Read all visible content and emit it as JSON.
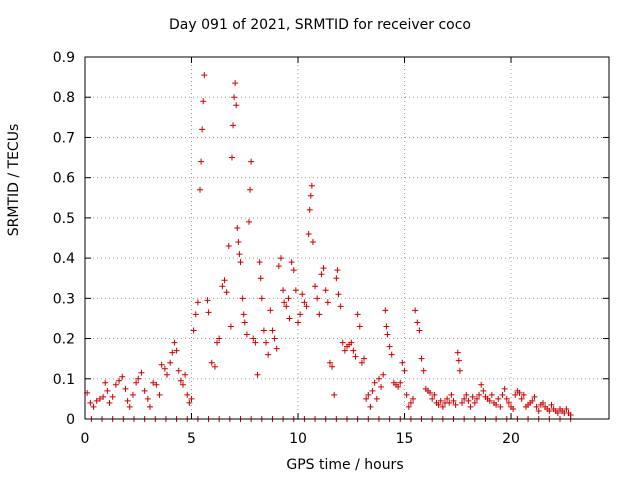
{
  "chart_data": {
    "type": "scatter",
    "title": "Day 091 of 2021, SRMTID for receiver coco",
    "xlabel": "GPS time / hours",
    "ylabel": "SRMTID / TECUs",
    "xlim": [
      0,
      24.6
    ],
    "ylim": [
      0,
      0.9
    ],
    "xticks": [
      0,
      5,
      10,
      15,
      20
    ],
    "yticks": [
      0,
      0.1,
      0.2,
      0.3,
      0.4,
      0.5,
      0.6,
      0.7,
      0.8,
      0.9
    ],
    "grid": true,
    "marker": "+",
    "color": "#cc0000",
    "series": [
      {
        "name": "SRMTID",
        "points": [
          [
            0.1,
            0.065
          ],
          [
            0.25,
            0.04
          ],
          [
            0.4,
            0.03
          ],
          [
            0.55,
            0.045
          ],
          [
            0.7,
            0.05
          ],
          [
            0.85,
            0.055
          ],
          [
            0.95,
            0.09
          ],
          [
            1.05,
            0.07
          ],
          [
            1.15,
            0.04
          ],
          [
            1.3,
            0.055
          ],
          [
            1.45,
            0.085
          ],
          [
            1.6,
            0.095
          ],
          [
            1.75,
            0.105
          ],
          [
            1.9,
            0.075
          ],
          [
            2.0,
            0.045
          ],
          [
            2.1,
            0.03
          ],
          [
            2.25,
            0.06
          ],
          [
            2.4,
            0.09
          ],
          [
            2.5,
            0.1
          ],
          [
            2.65,
            0.115
          ],
          [
            2.8,
            0.07
          ],
          [
            2.95,
            0.05
          ],
          [
            3.05,
            0.03
          ],
          [
            3.2,
            0.09
          ],
          [
            3.35,
            0.085
          ],
          [
            3.5,
            0.06
          ],
          [
            3.6,
            0.135
          ],
          [
            3.75,
            0.125
          ],
          [
            3.85,
            0.11
          ],
          [
            4.0,
            0.14
          ],
          [
            4.1,
            0.165
          ],
          [
            4.2,
            0.19
          ],
          [
            4.3,
            0.17
          ],
          [
            4.4,
            0.12
          ],
          [
            4.5,
            0.095
          ],
          [
            4.6,
            0.085
          ],
          [
            4.7,
            0.11
          ],
          [
            4.8,
            0.06
          ],
          [
            4.9,
            0.04
          ],
          [
            5.0,
            0.05
          ],
          [
            5.1,
            0.22
          ],
          [
            5.2,
            0.26
          ],
          [
            5.3,
            0.29
          ],
          [
            5.4,
            0.57
          ],
          [
            5.45,
            0.64
          ],
          [
            5.5,
            0.72
          ],
          [
            5.55,
            0.79
          ],
          [
            5.6,
            0.855
          ],
          [
            5.75,
            0.295
          ],
          [
            5.8,
            0.265
          ],
          [
            5.95,
            0.14
          ],
          [
            6.1,
            0.13
          ],
          [
            6.2,
            0.19
          ],
          [
            6.3,
            0.2
          ],
          [
            6.45,
            0.33
          ],
          [
            6.55,
            0.345
          ],
          [
            6.65,
            0.315
          ],
          [
            6.75,
            0.43
          ],
          [
            6.85,
            0.23
          ],
          [
            6.9,
            0.65
          ],
          [
            6.95,
            0.73
          ],
          [
            7.0,
            0.8
          ],
          [
            7.05,
            0.835
          ],
          [
            7.1,
            0.78
          ],
          [
            7.15,
            0.475
          ],
          [
            7.2,
            0.44
          ],
          [
            7.25,
            0.41
          ],
          [
            7.3,
            0.39
          ],
          [
            7.4,
            0.3
          ],
          [
            7.45,
            0.26
          ],
          [
            7.5,
            0.24
          ],
          [
            7.6,
            0.21
          ],
          [
            7.7,
            0.49
          ],
          [
            7.75,
            0.57
          ],
          [
            7.8,
            0.64
          ],
          [
            7.9,
            0.2
          ],
          [
            8.0,
            0.19
          ],
          [
            8.1,
            0.11
          ],
          [
            8.2,
            0.39
          ],
          [
            8.25,
            0.35
          ],
          [
            8.3,
            0.3
          ],
          [
            8.4,
            0.22
          ],
          [
            8.5,
            0.19
          ],
          [
            8.6,
            0.16
          ],
          [
            8.7,
            0.27
          ],
          [
            8.8,
            0.22
          ],
          [
            8.9,
            0.2
          ],
          [
            9.0,
            0.175
          ],
          [
            9.1,
            0.38
          ],
          [
            9.2,
            0.4
          ],
          [
            9.3,
            0.32
          ],
          [
            9.35,
            0.29
          ],
          [
            9.45,
            0.28
          ],
          [
            9.55,
            0.3
          ],
          [
            9.6,
            0.25
          ],
          [
            9.7,
            0.39
          ],
          [
            9.8,
            0.37
          ],
          [
            9.9,
            0.32
          ],
          [
            10.0,
            0.24
          ],
          [
            10.1,
            0.26
          ],
          [
            10.2,
            0.31
          ],
          [
            10.3,
            0.29
          ],
          [
            10.4,
            0.28
          ],
          [
            10.5,
            0.46
          ],
          [
            10.55,
            0.52
          ],
          [
            10.6,
            0.555
          ],
          [
            10.65,
            0.58
          ],
          [
            10.7,
            0.44
          ],
          [
            10.8,
            0.33
          ],
          [
            10.9,
            0.3
          ],
          [
            11.0,
            0.26
          ],
          [
            11.1,
            0.36
          ],
          [
            11.2,
            0.375
          ],
          [
            11.3,
            0.32
          ],
          [
            11.4,
            0.29
          ],
          [
            11.5,
            0.14
          ],
          [
            11.6,
            0.13
          ],
          [
            11.7,
            0.06
          ],
          [
            11.8,
            0.35
          ],
          [
            11.85,
            0.37
          ],
          [
            11.9,
            0.31
          ],
          [
            12.0,
            0.28
          ],
          [
            12.1,
            0.19
          ],
          [
            12.2,
            0.17
          ],
          [
            12.3,
            0.18
          ],
          [
            12.4,
            0.185
          ],
          [
            12.5,
            0.19
          ],
          [
            12.6,
            0.17
          ],
          [
            12.7,
            0.155
          ],
          [
            12.8,
            0.26
          ],
          [
            12.9,
            0.23
          ],
          [
            13.0,
            0.14
          ],
          [
            13.1,
            0.15
          ],
          [
            13.2,
            0.05
          ],
          [
            13.3,
            0.06
          ],
          [
            13.4,
            0.03
          ],
          [
            13.5,
            0.07
          ],
          [
            13.6,
            0.09
          ],
          [
            13.7,
            0.05
          ],
          [
            13.8,
            0.1
          ],
          [
            13.9,
            0.08
          ],
          [
            14.0,
            0.11
          ],
          [
            14.1,
            0.27
          ],
          [
            14.15,
            0.23
          ],
          [
            14.2,
            0.21
          ],
          [
            14.3,
            0.18
          ],
          [
            14.4,
            0.16
          ],
          [
            14.5,
            0.09
          ],
          [
            14.6,
            0.085
          ],
          [
            14.7,
            0.08
          ],
          [
            14.8,
            0.09
          ],
          [
            14.9,
            0.14
          ],
          [
            15.0,
            0.12
          ],
          [
            15.1,
            0.06
          ],
          [
            15.2,
            0.03
          ],
          [
            15.3,
            0.04
          ],
          [
            15.4,
            0.05
          ],
          [
            15.5,
            0.27
          ],
          [
            15.6,
            0.24
          ],
          [
            15.7,
            0.22
          ],
          [
            15.8,
            0.15
          ],
          [
            15.9,
            0.12
          ],
          [
            16.0,
            0.075
          ],
          [
            16.1,
            0.07
          ],
          [
            16.2,
            0.065
          ],
          [
            16.3,
            0.05
          ],
          [
            16.4,
            0.06
          ],
          [
            16.5,
            0.04
          ],
          [
            16.6,
            0.035
          ],
          [
            16.7,
            0.045
          ],
          [
            16.8,
            0.03
          ],
          [
            16.9,
            0.04
          ],
          [
            17.0,
            0.05
          ],
          [
            17.1,
            0.04
          ],
          [
            17.2,
            0.06
          ],
          [
            17.3,
            0.045
          ],
          [
            17.4,
            0.035
          ],
          [
            17.5,
            0.165
          ],
          [
            17.55,
            0.145
          ],
          [
            17.6,
            0.12
          ],
          [
            17.7,
            0.04
          ],
          [
            17.8,
            0.05
          ],
          [
            17.9,
            0.06
          ],
          [
            18.0,
            0.045
          ],
          [
            18.1,
            0.03
          ],
          [
            18.2,
            0.055
          ],
          [
            18.3,
            0.04
          ],
          [
            18.4,
            0.05
          ],
          [
            18.5,
            0.06
          ],
          [
            18.6,
            0.085
          ],
          [
            18.7,
            0.07
          ],
          [
            18.8,
            0.055
          ],
          [
            18.9,
            0.05
          ],
          [
            19.0,
            0.045
          ],
          [
            19.1,
            0.06
          ],
          [
            19.2,
            0.04
          ],
          [
            19.3,
            0.035
          ],
          [
            19.4,
            0.05
          ],
          [
            19.5,
            0.03
          ],
          [
            19.6,
            0.06
          ],
          [
            19.7,
            0.075
          ],
          [
            19.8,
            0.05
          ],
          [
            19.9,
            0.04
          ],
          [
            20.0,
            0.03
          ],
          [
            20.1,
            0.025
          ],
          [
            20.2,
            0.06
          ],
          [
            20.3,
            0.07
          ],
          [
            20.4,
            0.065
          ],
          [
            20.5,
            0.05
          ],
          [
            20.6,
            0.06
          ],
          [
            20.7,
            0.03
          ],
          [
            20.8,
            0.035
          ],
          [
            20.9,
            0.04
          ],
          [
            21.0,
            0.045
          ],
          [
            21.1,
            0.055
          ],
          [
            21.2,
            0.03
          ],
          [
            21.3,
            0.02
          ],
          [
            21.4,
            0.035
          ],
          [
            21.5,
            0.04
          ],
          [
            21.6,
            0.03
          ],
          [
            21.7,
            0.025
          ],
          [
            21.8,
            0.02
          ],
          [
            21.9,
            0.035
          ],
          [
            22.0,
            0.025
          ],
          [
            22.1,
            0.02
          ],
          [
            22.2,
            0.015
          ],
          [
            22.3,
            0.025
          ],
          [
            22.4,
            0.02
          ],
          [
            22.5,
            0.015
          ],
          [
            22.6,
            0.025
          ],
          [
            22.7,
            0.015
          ],
          [
            22.8,
            0.01
          ],
          [
            0.3,
            0
          ],
          [
            0.8,
            0
          ],
          [
            1.3,
            0
          ],
          [
            1.8,
            0
          ],
          [
            2.3,
            0
          ],
          [
            2.8,
            0
          ],
          [
            3.3,
            0
          ],
          [
            3.8,
            0
          ],
          [
            4.3,
            0
          ],
          [
            4.8,
            0
          ],
          [
            5.3,
            0
          ],
          [
            5.8,
            0
          ],
          [
            6.3,
            0
          ],
          [
            6.8,
            0
          ],
          [
            7.3,
            0
          ],
          [
            7.8,
            0
          ],
          [
            8.3,
            0
          ],
          [
            8.8,
            0
          ],
          [
            9.3,
            0
          ],
          [
            9.8,
            0
          ],
          [
            10.3,
            0
          ],
          [
            10.8,
            0
          ],
          [
            11.3,
            0
          ],
          [
            11.8,
            0
          ],
          [
            12.3,
            0
          ],
          [
            12.8,
            0
          ],
          [
            13.3,
            0
          ],
          [
            13.8,
            0
          ],
          [
            14.3,
            0
          ],
          [
            14.8,
            0
          ],
          [
            15.3,
            0
          ],
          [
            15.8,
            0
          ],
          [
            16.3,
            0
          ],
          [
            16.8,
            0
          ],
          [
            17.3,
            0
          ],
          [
            17.8,
            0
          ],
          [
            18.3,
            0
          ],
          [
            18.8,
            0
          ],
          [
            19.3,
            0
          ],
          [
            19.8,
            0
          ],
          [
            20.3,
            0
          ],
          [
            20.8,
            0
          ],
          [
            21.3,
            0
          ],
          [
            21.8,
            0
          ],
          [
            22.3,
            0
          ],
          [
            22.8,
            0
          ]
        ]
      }
    ]
  }
}
